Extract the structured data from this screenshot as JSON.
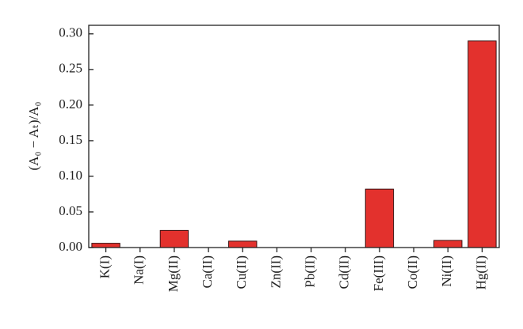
{
  "chart_data": {
    "type": "bar",
    "y_label": "(A₀ − Aₜ)/A₀",
    "categories": [
      "K(I)",
      "Na(I)",
      "Mg(II)",
      "Ca(II)",
      "Cu(II)",
      "Zn(II)",
      "Pb(II)",
      "Cd(II)",
      "Fe(III)",
      "Co(II)",
      "Ni(II)",
      "Hg(II)"
    ],
    "values": [
      0.006,
      0,
      0.024,
      0,
      0.009,
      0,
      0,
      0,
      0.082,
      0,
      0.01,
      0.29
    ],
    "color": "#e3312d",
    "ylim": [
      0,
      0.312
    ],
    "yticks": [
      {
        "value": 0,
        "label": "0.00"
      },
      {
        "value": 0.05,
        "label": "0.05"
      },
      {
        "value": 0.1,
        "label": "0.10"
      },
      {
        "value": 0.15,
        "label": "0.15"
      },
      {
        "value": 0.2,
        "label": "0.20"
      },
      {
        "value": 0.25,
        "label": "0.25"
      },
      {
        "value": 0.3,
        "label": "0.30"
      }
    ],
    "grid": false
  }
}
